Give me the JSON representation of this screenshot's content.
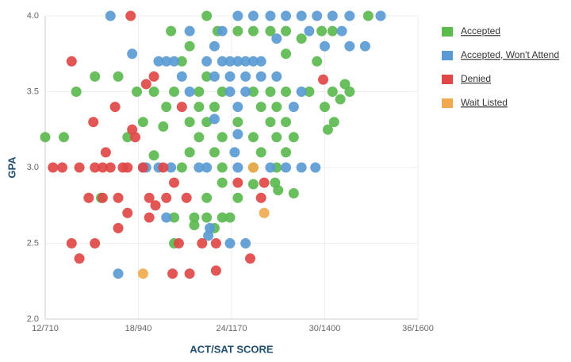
{
  "chart_data": {
    "type": "scatter",
    "x_label": "ACT/SAT SCORE",
    "y_label": "GPA",
    "xlim": [
      12,
      36
    ],
    "ylim": [
      2.0,
      4.0
    ],
    "xticks": [
      {
        "value": 12,
        "label": "12/710"
      },
      {
        "value": 18,
        "label": "18/940"
      },
      {
        "value": 24,
        "label": "24/1170"
      },
      {
        "value": 30,
        "label": "30/1400"
      },
      {
        "value": 36,
        "label": "36/1600"
      }
    ],
    "yticks": [
      {
        "value": 2,
        "label": "2.0"
      },
      2.5,
      {
        "value": 3,
        "label": "3.0"
      },
      3.5,
      {
        "value": 4,
        "label": "4.0"
      }
    ],
    "grid": true,
    "legend": "right",
    "series": [
      {
        "name": "Accepted",
        "color": "#5cba4f",
        "x": [
          12.0,
          13.2,
          14.0,
          15.2,
          16.7,
          15.6,
          17.3,
          17.9,
          18.3,
          19.0,
          19.6,
          20.1,
          20.3,
          20.3,
          21.6,
          22.4,
          23.4,
          23.9,
          21.6,
          22.9,
          22.4,
          24.4,
          23.4,
          25.4,
          26.8,
          27.0,
          28.0,
          22.4,
          23.1,
          24.4,
          25.4,
          26.5,
          27.5,
          28.5,
          29.8,
          30.5,
          32.8,
          21.3,
          20.8,
          22.4,
          21.9,
          23.4,
          25.4,
          26.5,
          27.5,
          29.0,
          30.5,
          31.6,
          31.0,
          31.3,
          30.0,
          21.9,
          22.9,
          25.9,
          26.9,
          21.3,
          22.4,
          24.4,
          26.5,
          27.5,
          21.9,
          23.4,
          25.4,
          26.9,
          28.0,
          21.3,
          22.9,
          25.9,
          27.5,
          20.8,
          23.4,
          25.4,
          26.9,
          30.2,
          30.6,
          29.5,
          27.5,
          20.3,
          19.0,
          19.8
        ],
        "y": [
          3.2,
          3.2,
          3.5,
          3.6,
          3.6,
          2.8,
          3.2,
          3.5,
          3.3,
          3.08,
          3.27,
          3.9,
          2.5,
          2.67,
          2.67,
          2.67,
          2.67,
          2.67,
          2.62,
          2.6,
          2.8,
          2.8,
          2.9,
          2.89,
          2.9,
          2.85,
          2.83,
          4.0,
          3.9,
          3.9,
          3.9,
          3.9,
          3.9,
          3.85,
          3.9,
          3.9,
          4.0,
          3.8,
          3.7,
          3.6,
          3.5,
          3.5,
          3.5,
          3.5,
          3.5,
          3.5,
          3.5,
          3.5,
          3.45,
          3.55,
          3.4,
          3.4,
          3.4,
          3.4,
          3.4,
          3.3,
          3.3,
          3.3,
          3.3,
          3.3,
          3.2,
          3.2,
          3.2,
          3.2,
          3.2,
          3.1,
          3.1,
          3.1,
          3.1,
          3.0,
          3.0,
          3.0,
          3.0,
          3.25,
          3.3,
          3.7,
          3.75,
          3.5,
          3.5,
          3.4
        ]
      },
      {
        "name": "Accepted, Won't Attend",
        "color": "#5b9bd5",
        "x": [
          16.2,
          16.7,
          17.6,
          18.5,
          19.3,
          20.1,
          19.3,
          19.8,
          20.3,
          20.8,
          21.3,
          22.4,
          22.9,
          23.4,
          23.9,
          24.4,
          24.9,
          25.4,
          25.9,
          23.4,
          24.4,
          25.4,
          26.5,
          27.5,
          28.5,
          29.5,
          30.5,
          31.6,
          33.6,
          31.1,
          30.0,
          31.6,
          32.6,
          29.0,
          26.9,
          22.9,
          23.9,
          24.9,
          25.9,
          23.9,
          24.9,
          24.4,
          22.9,
          24.4,
          24.2,
          22.4,
          24.4,
          26.5,
          27.5,
          28.5,
          29.4,
          22.6,
          22.5,
          23.9,
          24.9,
          19.8,
          28.5,
          28.0,
          26.9,
          21.3,
          21.9,
          18.3
        ],
        "y": [
          4.0,
          2.3,
          3.75,
          3.0,
          3.0,
          3.0,
          3.7,
          3.7,
          3.7,
          3.6,
          3.5,
          3.7,
          3.8,
          3.7,
          3.7,
          3.7,
          3.7,
          3.7,
          3.7,
          3.9,
          4.0,
          4.0,
          4.0,
          4.0,
          4.0,
          4.0,
          4.0,
          4.0,
          4.0,
          3.9,
          3.8,
          3.8,
          3.8,
          3.9,
          3.85,
          3.6,
          3.6,
          3.6,
          3.6,
          3.5,
          3.5,
          3.4,
          3.32,
          3.22,
          3.1,
          3.0,
          3.0,
          3.0,
          3.0,
          3.0,
          3.0,
          2.6,
          2.55,
          2.5,
          2.5,
          2.67,
          3.5,
          3.4,
          3.6,
          3.9,
          3.0,
          3.0
        ]
      },
      {
        "name": "Denied",
        "color": "#e04848",
        "x": [
          17.5,
          13.7,
          12.5,
          13.1,
          14.2,
          15.2,
          15.7,
          16.2,
          17.0,
          17.3,
          19.6,
          15.1,
          16.5,
          15.9,
          14.8,
          15.7,
          16.7,
          17.3,
          16.7,
          13.7,
          14.2,
          15.2,
          17.6,
          17.8,
          18.5,
          19.0,
          18.7,
          19.1,
          19.8,
          18.7,
          20.6,
          20.2,
          21.3,
          23.0,
          22.1,
          23.0,
          25.2,
          21.1,
          20.3,
          20.8,
          24.4,
          25.9,
          26.1,
          29.9,
          18.3
        ],
        "y": [
          4.0,
          3.7,
          3.0,
          3.0,
          3.0,
          3.0,
          3.0,
          3.0,
          3.0,
          3.0,
          3.0,
          3.3,
          3.4,
          3.1,
          2.8,
          2.8,
          2.8,
          2.7,
          2.6,
          2.5,
          2.4,
          2.5,
          3.25,
          3.2,
          3.55,
          3.6,
          2.8,
          2.75,
          2.8,
          2.67,
          2.5,
          2.3,
          2.3,
          2.32,
          2.5,
          2.5,
          2.4,
          2.8,
          2.9,
          3.4,
          2.9,
          2.8,
          2.9,
          3.58,
          3.0
        ]
      },
      {
        "name": "Wait Listed",
        "color": "#f0a94e",
        "x": [
          18.3,
          26.1,
          25.4
        ],
        "y": [
          2.3,
          2.7,
          3.0
        ]
      }
    ]
  }
}
